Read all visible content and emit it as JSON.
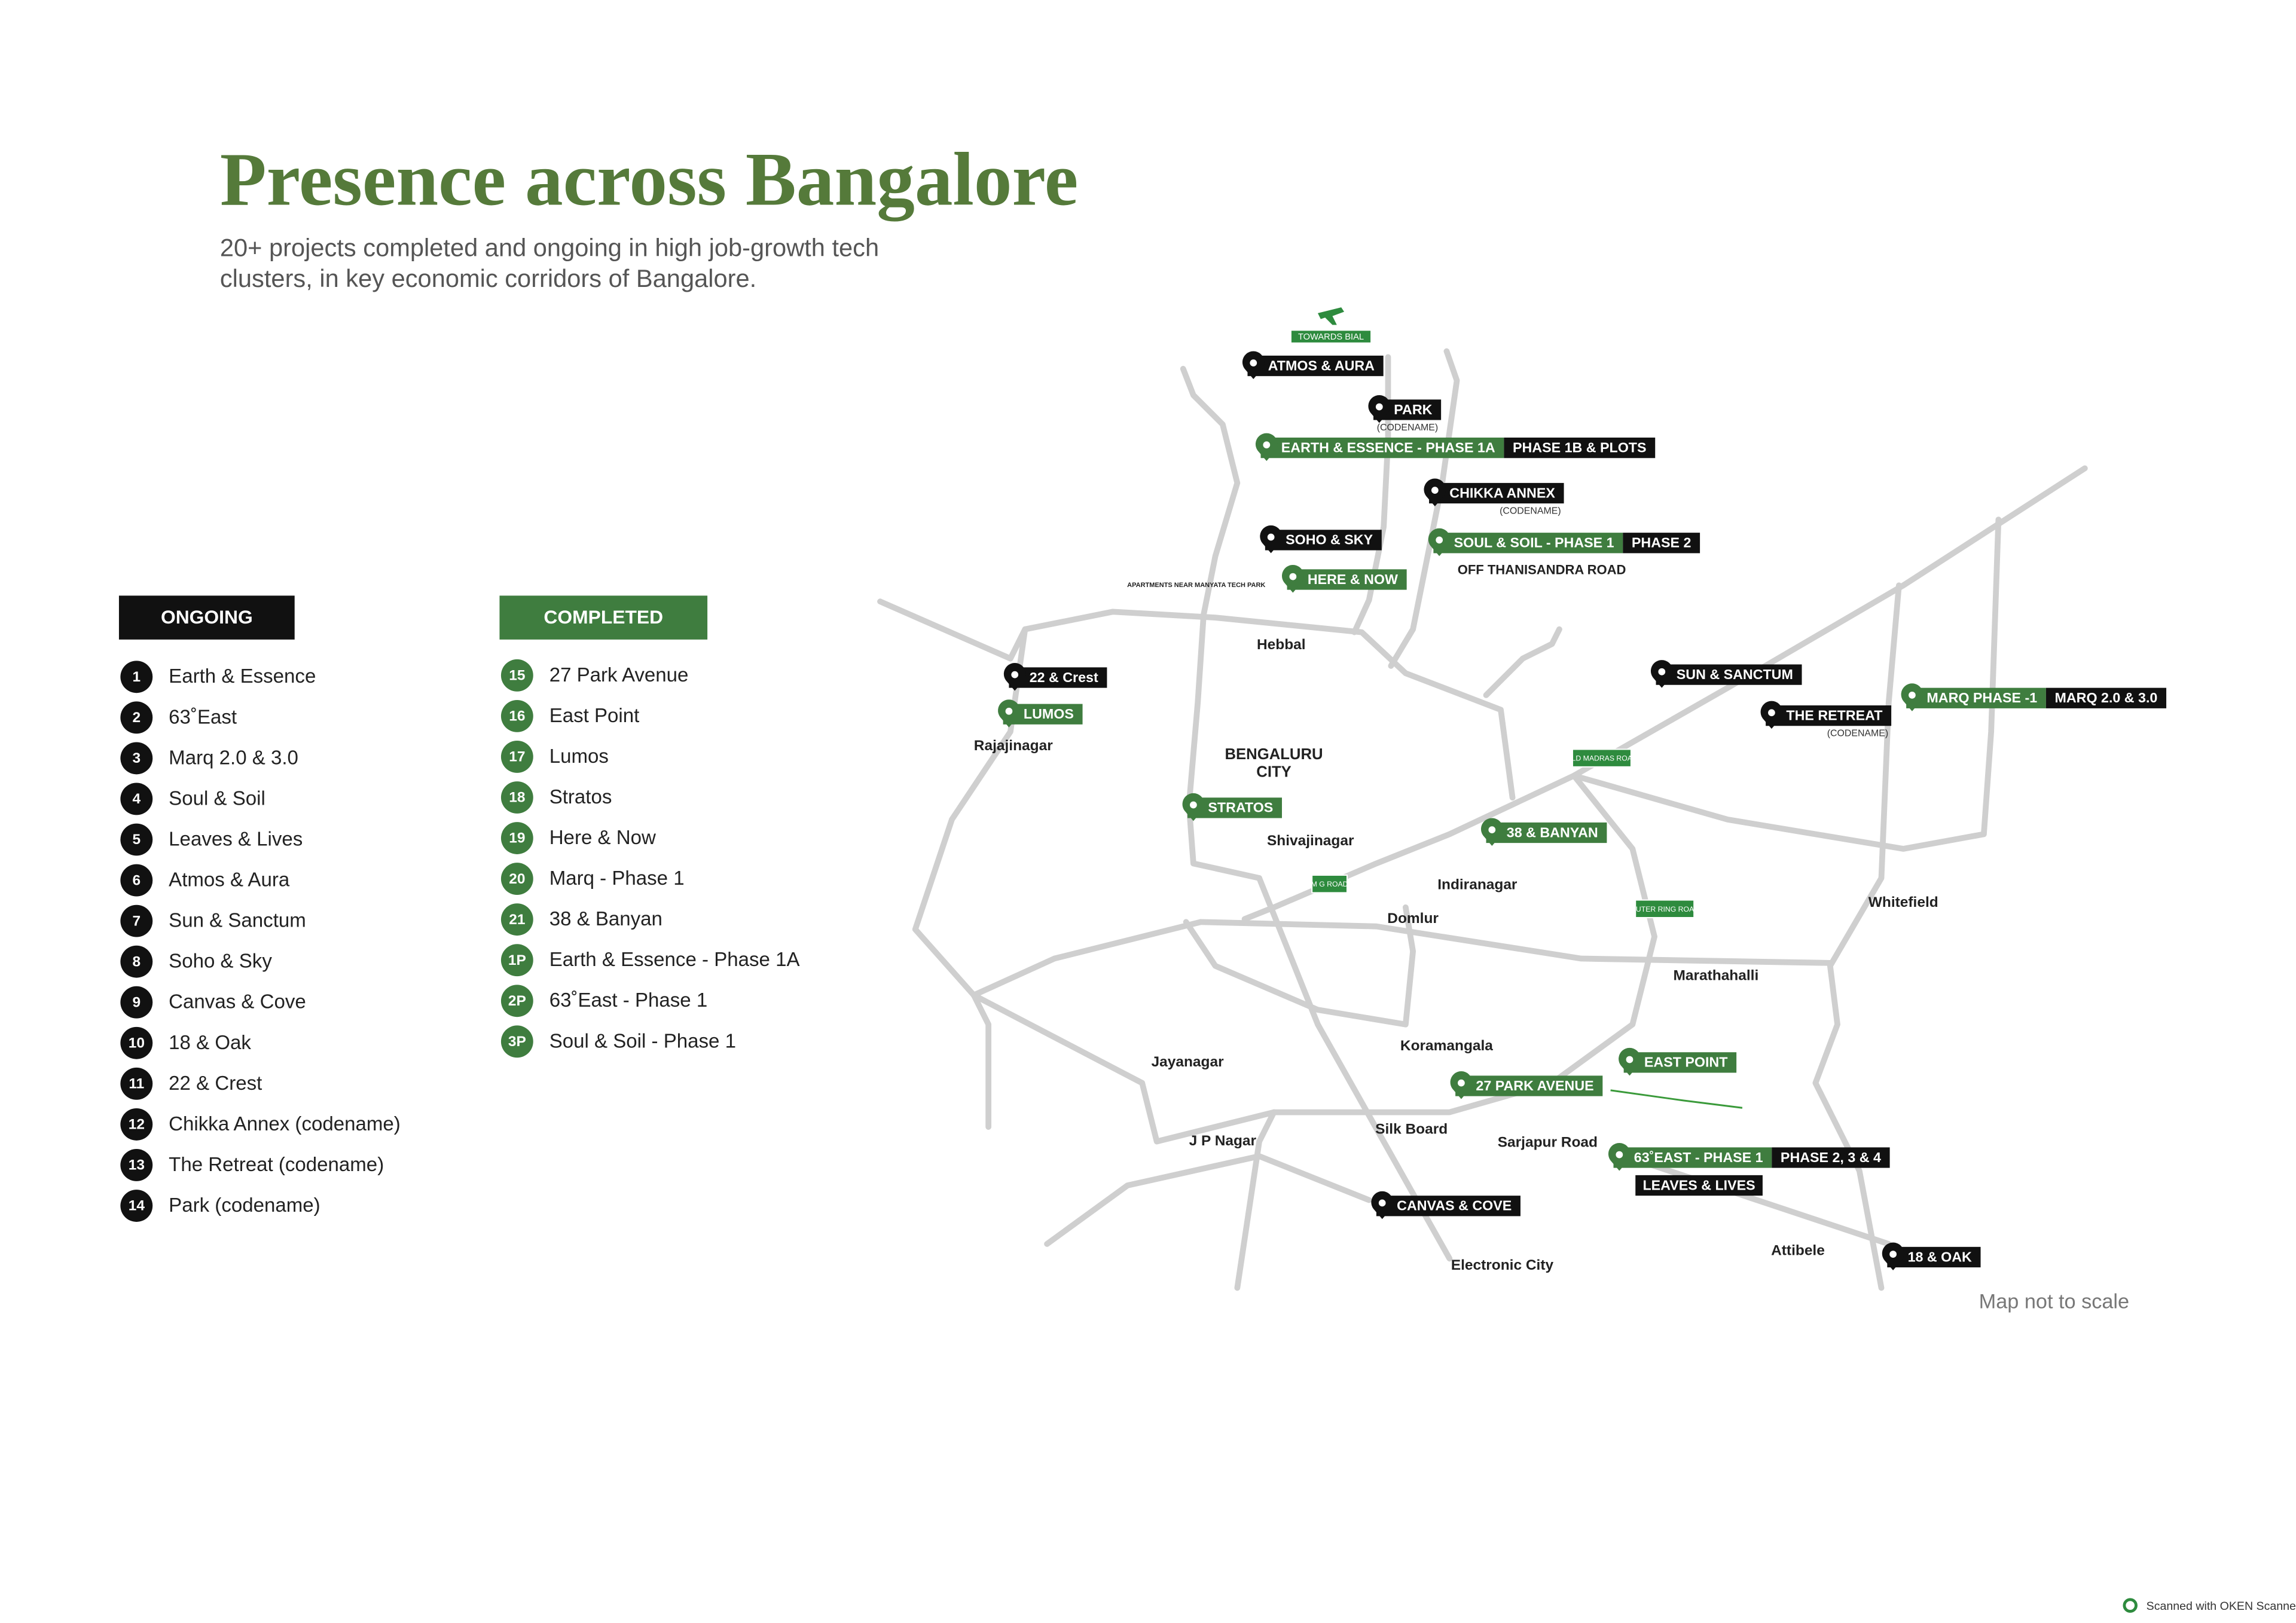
{
  "header": {
    "title": "Presence across Bangalore",
    "subtitle_lines": [
      "20+ projects completed and ongoing in high job-growth tech",
      "clusters, in key economic corridors of Bangalore."
    ]
  },
  "legend": {
    "ongoing": {
      "title": "ONGOING",
      "items": [
        {
          "number": "1",
          "name": "Earth & Essence"
        },
        {
          "number": "2",
          "name": "63˚East"
        },
        {
          "number": "3",
          "name": "Marq 2.0 & 3.0"
        },
        {
          "number": "4",
          "name": "Soul & Soil"
        },
        {
          "number": "5",
          "name": "Leaves & Lives"
        },
        {
          "number": "6",
          "name": "Atmos & Aura"
        },
        {
          "number": "7",
          "name": "Sun & Sanctum"
        },
        {
          "number": "8",
          "name": "Soho & Sky"
        },
        {
          "number": "9",
          "name": "Canvas & Cove"
        },
        {
          "number": "10",
          "name": "18 & Oak"
        },
        {
          "number": "11",
          "name": "22 & Crest"
        },
        {
          "number": "12",
          "name": "Chikka Annex (codename)"
        },
        {
          "number": "13",
          "name": "The Retreat (codename)"
        },
        {
          "number": "14",
          "name": "Park (codename)"
        }
      ]
    },
    "completed": {
      "title": "COMPLETED",
      "items": [
        {
          "number": "15",
          "name": "27 Park Avenue"
        },
        {
          "number": "16",
          "name": "East Point"
        },
        {
          "number": "17",
          "name": "Lumos"
        },
        {
          "number": "18",
          "name": "Stratos"
        },
        {
          "number": "19",
          "name": "Here & Now"
        },
        {
          "number": "20",
          "name": "Marq - Phase 1"
        },
        {
          "number": "21",
          "name": "38 & Banyan"
        },
        {
          "number": "1P",
          "name": "Earth & Essence - Phase 1A"
        },
        {
          "number": "2P",
          "name": "63˚East - Phase 1"
        },
        {
          "number": "3P",
          "name": "Soul & Soil - Phase 1"
        }
      ]
    }
  },
  "map": {
    "markers": [
      {
        "label": "ATMOS & AURA"
      },
      {
        "label": "PARK",
        "note": "(CODENAME)"
      },
      {
        "label": "EARTH & ESSENCE - PHASE 1A",
        "tag": "PHASE 1B & PLOTS"
      },
      {
        "label": "CHIKKA ANNEX",
        "note": "(CODENAME)"
      },
      {
        "label": "SOHO & SKY"
      },
      {
        "label": "SOUL & SOIL - PHASE 1",
        "tag": "PHASE 2"
      },
      {
        "label": "HERE & NOW"
      },
      {
        "label": "22 & Crest"
      },
      {
        "label": "LUMOS"
      },
      {
        "label": "SUN & SANCTUM"
      },
      {
        "label": "THE RETREAT",
        "note": "(CODENAME)"
      },
      {
        "label": "MARQ PHASE -1",
        "tag": "MARQ 2.0 & 3.0"
      },
      {
        "label": "STRATOS"
      },
      {
        "label": "38 & BANYAN"
      },
      {
        "label": "EAST POINT"
      },
      {
        "label": "27 PARK AVENUE"
      },
      {
        "label": "63˚EAST - PHASE 1",
        "tag": "PHASE 2, 3 & 4",
        "below": "LEAVES & LIVES"
      },
      {
        "label": "CANVAS & COVE"
      },
      {
        "label": "18 & OAK"
      }
    ],
    "places": [
      "OFF THANISANDRA ROAD",
      "Hebbal",
      "BENGALURU",
      "CITY",
      "Rajajinagar",
      "Shivajinagar",
      "Indiranagar",
      "Domlur",
      "Whitefield",
      "Marathahalli",
      "Koramangala",
      "Jayanagar",
      "J P Nagar",
      "Silk Board",
      "Sarjapur Road",
      "Electronic City",
      "Attibele",
      "APARTMENTS NEAR MANYATA TECH PARK"
    ],
    "road_signs": [
      "OLD MADRAS ROAD",
      "M G ROAD",
      "OUTER RING ROAD"
    ],
    "airport": "TOWARDS BIAL",
    "note": "Map not to scale"
  },
  "footer": "Scanned with OKEN Scanner"
}
